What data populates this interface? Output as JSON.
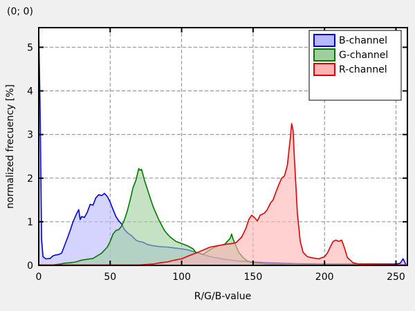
{
  "coordinate_readout": "(0; 0)",
  "colors": {
    "b_stroke": "#0000d8",
    "b_fill": "#b8b8ff",
    "g_stroke": "#007800",
    "g_fill": "#9fcf9f",
    "r_stroke": "#e00000",
    "r_fill": "#ffb3b3",
    "grid": "#888888",
    "background": "#ffffff",
    "page": "#f0f0f0"
  },
  "chart_data": {
    "type": "area",
    "title": "",
    "xlabel": "R/G/B-value",
    "ylabel": "normalized frecuency [%]",
    "xlim": [
      0,
      258
    ],
    "ylim": [
      0,
      5.45
    ],
    "x_ticks": [
      0,
      50,
      100,
      150,
      200,
      250
    ],
    "y_ticks": [
      0,
      1,
      2,
      3,
      4,
      5
    ],
    "grid": true,
    "legend_position": "top-right",
    "series": [
      {
        "name": "B-channel",
        "color": "b",
        "points": [
          [
            0,
            5.45
          ],
          [
            1,
            3.5
          ],
          [
            2,
            0.6
          ],
          [
            3,
            0.2
          ],
          [
            5,
            0.15
          ],
          [
            8,
            0.16
          ],
          [
            10,
            0.22
          ],
          [
            12,
            0.24
          ],
          [
            14,
            0.25
          ],
          [
            16,
            0.28
          ],
          [
            18,
            0.45
          ],
          [
            20,
            0.62
          ],
          [
            22,
            0.8
          ],
          [
            24,
            1.0
          ],
          [
            26,
            1.15
          ],
          [
            28,
            1.28
          ],
          [
            29,
            1.05
          ],
          [
            30,
            1.12
          ],
          [
            32,
            1.1
          ],
          [
            34,
            1.22
          ],
          [
            36,
            1.4
          ],
          [
            38,
            1.38
          ],
          [
            40,
            1.55
          ],
          [
            42,
            1.62
          ],
          [
            44,
            1.6
          ],
          [
            46,
            1.65
          ],
          [
            48,
            1.58
          ],
          [
            50,
            1.45
          ],
          [
            52,
            1.28
          ],
          [
            54,
            1.12
          ],
          [
            56,
            1.02
          ],
          [
            58,
            0.95
          ],
          [
            60,
            0.82
          ],
          [
            62,
            0.75
          ],
          [
            65,
            0.68
          ],
          [
            68,
            0.58
          ],
          [
            70,
            0.55
          ],
          [
            73,
            0.53
          ],
          [
            76,
            0.48
          ],
          [
            80,
            0.45
          ],
          [
            85,
            0.43
          ],
          [
            90,
            0.42
          ],
          [
            95,
            0.4
          ],
          [
            100,
            0.38
          ],
          [
            105,
            0.35
          ],
          [
            110,
            0.3
          ],
          [
            115,
            0.25
          ],
          [
            120,
            0.2
          ],
          [
            125,
            0.17
          ],
          [
            130,
            0.14
          ],
          [
            135,
            0.12
          ],
          [
            140,
            0.1
          ],
          [
            145,
            0.09
          ],
          [
            150,
            0.08
          ],
          [
            160,
            0.06
          ],
          [
            170,
            0.05
          ],
          [
            180,
            0.04
          ],
          [
            200,
            0.03
          ],
          [
            220,
            0.03
          ],
          [
            240,
            0.03
          ],
          [
            250,
            0.03
          ],
          [
            253,
            0.05
          ],
          [
            255,
            0.15
          ],
          [
            257,
            0.02
          ]
        ]
      },
      {
        "name": "G-channel",
        "color": "g",
        "points": [
          [
            0,
            0.01
          ],
          [
            10,
            0.01
          ],
          [
            15,
            0.03
          ],
          [
            18,
            0.05
          ],
          [
            22,
            0.06
          ],
          [
            26,
            0.08
          ],
          [
            30,
            0.12
          ],
          [
            34,
            0.14
          ],
          [
            38,
            0.16
          ],
          [
            40,
            0.2
          ],
          [
            44,
            0.28
          ],
          [
            48,
            0.42
          ],
          [
            50,
            0.55
          ],
          [
            52,
            0.72
          ],
          [
            54,
            0.8
          ],
          [
            56,
            0.82
          ],
          [
            58,
            0.9
          ],
          [
            60,
            1.05
          ],
          [
            62,
            1.25
          ],
          [
            64,
            1.5
          ],
          [
            66,
            1.78
          ],
          [
            68,
            1.95
          ],
          [
            70,
            2.22
          ],
          [
            71,
            2.18
          ],
          [
            72,
            2.2
          ],
          [
            74,
            1.95
          ],
          [
            76,
            1.75
          ],
          [
            78,
            1.55
          ],
          [
            80,
            1.35
          ],
          [
            82,
            1.2
          ],
          [
            84,
            1.05
          ],
          [
            86,
            0.92
          ],
          [
            88,
            0.8
          ],
          [
            90,
            0.72
          ],
          [
            92,
            0.65
          ],
          [
            94,
            0.6
          ],
          [
            96,
            0.55
          ],
          [
            100,
            0.5
          ],
          [
            104,
            0.45
          ],
          [
            108,
            0.38
          ],
          [
            110,
            0.3
          ],
          [
            112,
            0.28
          ],
          [
            115,
            0.25
          ],
          [
            118,
            0.32
          ],
          [
            122,
            0.4
          ],
          [
            126,
            0.45
          ],
          [
            130,
            0.48
          ],
          [
            132,
            0.55
          ],
          [
            134,
            0.62
          ],
          [
            135,
            0.72
          ],
          [
            136,
            0.6
          ],
          [
            138,
            0.45
          ],
          [
            140,
            0.3
          ],
          [
            143,
            0.18
          ],
          [
            146,
            0.1
          ],
          [
            150,
            0.06
          ],
          [
            160,
            0.03
          ],
          [
            180,
            0.01
          ],
          [
            257,
            0.01
          ]
        ]
      },
      {
        "name": "R-channel",
        "color": "r",
        "points": [
          [
            0,
            0.01
          ],
          [
            70,
            0.01
          ],
          [
            80,
            0.03
          ],
          [
            85,
            0.06
          ],
          [
            90,
            0.08
          ],
          [
            95,
            0.12
          ],
          [
            100,
            0.15
          ],
          [
            105,
            0.22
          ],
          [
            110,
            0.28
          ],
          [
            115,
            0.35
          ],
          [
            120,
            0.42
          ],
          [
            125,
            0.45
          ],
          [
            130,
            0.48
          ],
          [
            135,
            0.5
          ],
          [
            138,
            0.52
          ],
          [
            142,
            0.65
          ],
          [
            145,
            0.85
          ],
          [
            147,
            1.05
          ],
          [
            149,
            1.15
          ],
          [
            151,
            1.1
          ],
          [
            153,
            1.02
          ],
          [
            155,
            1.15
          ],
          [
            158,
            1.2
          ],
          [
            160,
            1.28
          ],
          [
            162,
            1.42
          ],
          [
            164,
            1.5
          ],
          [
            166,
            1.68
          ],
          [
            168,
            1.85
          ],
          [
            170,
            2.0
          ],
          [
            172,
            2.05
          ],
          [
            174,
            2.3
          ],
          [
            175,
            2.6
          ],
          [
            176,
            2.9
          ],
          [
            177,
            3.25
          ],
          [
            178,
            3.1
          ],
          [
            179,
            2.4
          ],
          [
            180,
            1.8
          ],
          [
            181,
            1.2
          ],
          [
            183,
            0.55
          ],
          [
            185,
            0.3
          ],
          [
            188,
            0.2
          ],
          [
            192,
            0.17
          ],
          [
            196,
            0.15
          ],
          [
            200,
            0.2
          ],
          [
            202,
            0.28
          ],
          [
            204,
            0.42
          ],
          [
            206,
            0.55
          ],
          [
            208,
            0.58
          ],
          [
            210,
            0.55
          ],
          [
            212,
            0.58
          ],
          [
            214,
            0.4
          ],
          [
            216,
            0.18
          ],
          [
            220,
            0.06
          ],
          [
            225,
            0.02
          ],
          [
            257,
            0.01
          ]
        ]
      }
    ]
  }
}
